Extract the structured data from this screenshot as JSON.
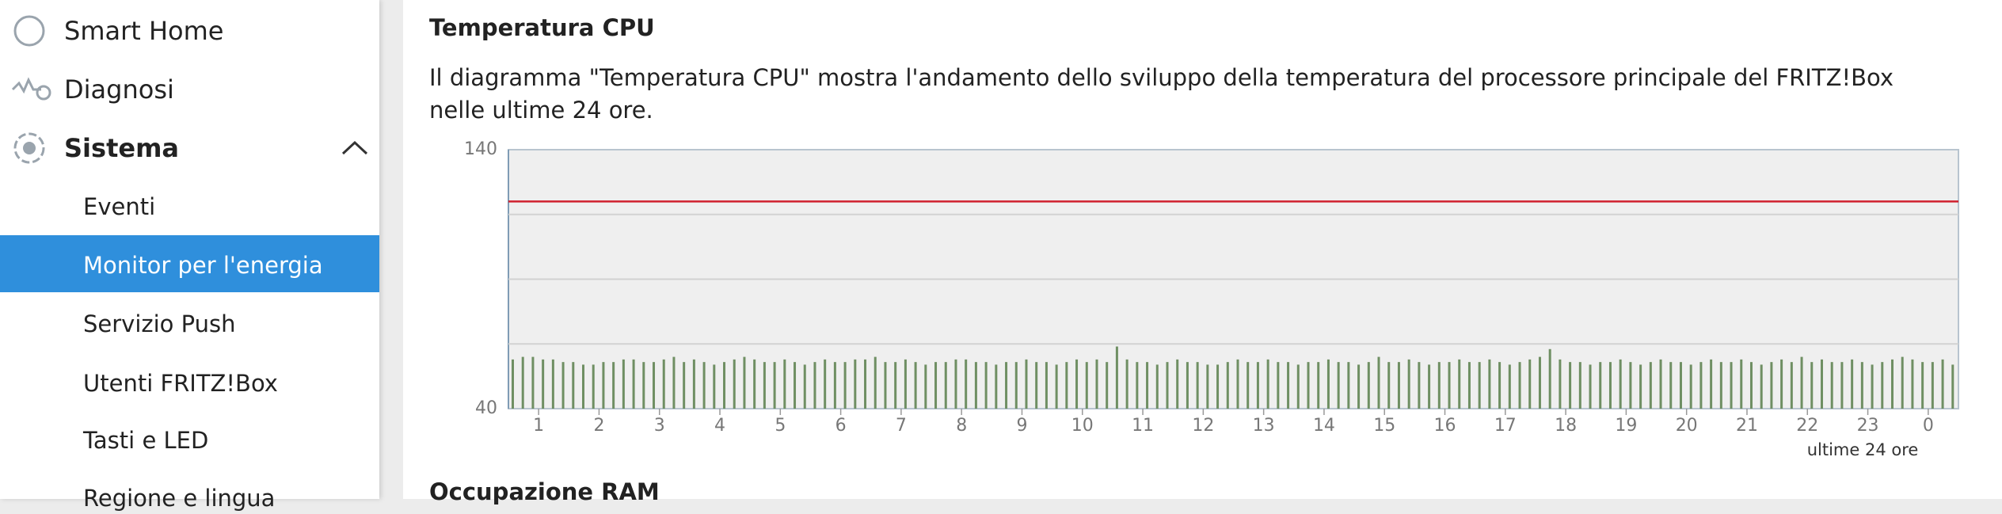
{
  "sidebar": {
    "items": [
      "Smart Home",
      "Diagnosi",
      "Sistema"
    ],
    "subitems": [
      "Eventi",
      "Monitor per l'energia",
      "Servizio Push",
      "Utenti FRITZ!Box",
      "Tasti e LED",
      "Regione e lingua"
    ]
  },
  "chart_data": {
    "type": "bar",
    "title": "Temperatura CPU",
    "description": "Il diagramma \"Temperatura CPU\" mostra l'andamento dello sviluppo della temperatura del processore principale del FRITZ!Box nelle ultime 24 ore.",
    "x_label": "ultime 24 ore",
    "next_title": "Occupazione RAM",
    "x_tick_labels": [
      "1",
      "2",
      "3",
      "4",
      "5",
      "6",
      "7",
      "8",
      "9",
      "10",
      "11",
      "12",
      "13",
      "14",
      "15",
      "16",
      "17",
      "18",
      "19",
      "20",
      "21",
      "22",
      "23",
      "0"
    ],
    "values": [
      59,
      60,
      60,
      59,
      59,
      58,
      58,
      57,
      57,
      58,
      58,
      59,
      59,
      58,
      58,
      59,
      60,
      58,
      59,
      58,
      57,
      58,
      59,
      60,
      59,
      58,
      58,
      59,
      58,
      57,
      58,
      59,
      58,
      58,
      59,
      59,
      60,
      58,
      58,
      59,
      58,
      57,
      58,
      58,
      59,
      59,
      58,
      58,
      57,
      58,
      58,
      59,
      58,
      58,
      57,
      58,
      59,
      58,
      59,
      58,
      64,
      59,
      58,
      58,
      57,
      58,
      59,
      58,
      58,
      57,
      57,
      58,
      59,
      58,
      58,
      59,
      58,
      58,
      57,
      58,
      58,
      59,
      58,
      58,
      57,
      58,
      60,
      58,
      58,
      59,
      58,
      57,
      58,
      58,
      59,
      58,
      58,
      59,
      58,
      57,
      58,
      59,
      60,
      63,
      59,
      58,
      58,
      57,
      58,
      58,
      59,
      58,
      57,
      58,
      59,
      58,
      58,
      57,
      58,
      59,
      58,
      58,
      59,
      58,
      57,
      58,
      59,
      58,
      60,
      58,
      59,
      58,
      58,
      59,
      58,
      57,
      58,
      59,
      60,
      59,
      58,
      58,
      59,
      57
    ],
    "color": "#6f8f63",
    "ylim": [
      40,
      140
    ],
    "yticks": [
      40,
      140
    ],
    "grid_lines": [
      65,
      90,
      115
    ],
    "threshold": 120,
    "threshold_color": "#d0202e"
  }
}
